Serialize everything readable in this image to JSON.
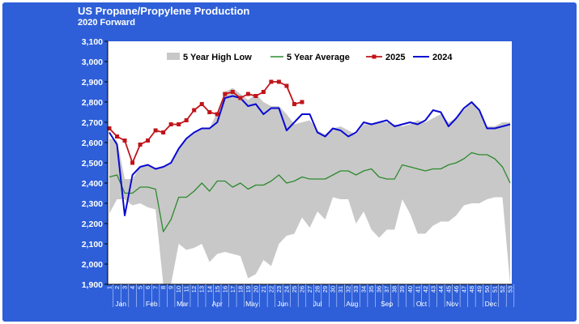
{
  "chart_data": {
    "type": "line",
    "title": "US Propane/Propylene Production",
    "subtitle": "2020 Forward",
    "ylim": [
      1900,
      3100
    ],
    "yticks": [
      "1,900",
      "2,000",
      "2,100",
      "2,200",
      "2,300",
      "2,400",
      "2,500",
      "2,600",
      "2,700",
      "2,800",
      "2,900",
      "3,000",
      "3,100"
    ],
    "xlim": [
      1,
      53
    ],
    "x_week_labels": [
      "1",
      "2",
      "3",
      "4",
      "5",
      "6",
      "7",
      "8",
      "9",
      "10",
      "11",
      "12",
      "13",
      "14",
      "15",
      "16",
      "17",
      "18",
      "19",
      "20",
      "21",
      "22",
      "23",
      "24",
      "25",
      "26",
      "27",
      "28",
      "29",
      "30",
      "31",
      "32",
      "33",
      "34",
      "35",
      "36",
      "37",
      "38",
      "39",
      "40",
      "41",
      "42",
      "43",
      "44",
      "45",
      "46",
      "47",
      "48",
      "49",
      "50",
      "51",
      "52",
      "53"
    ],
    "months": [
      {
        "label": "Jan",
        "week": 2.5
      },
      {
        "label": "Feb",
        "week": 6.5
      },
      {
        "label": "Mar",
        "week": 10.5
      },
      {
        "label": "Apr",
        "week": 15
      },
      {
        "label": "May",
        "week": 19.5
      },
      {
        "label": "Jun",
        "week": 23.5
      },
      {
        "label": "Jul",
        "week": 28
      },
      {
        "label": "Aug",
        "week": 32.5
      },
      {
        "label": "Sep",
        "week": 37
      },
      {
        "label": "Oct",
        "week": 41.5
      },
      {
        "label": "Nov",
        "week": 45.5
      },
      {
        "label": "Dec",
        "week": 50.5
      }
    ],
    "legend_position": "top",
    "grid": false,
    "colors": {
      "background": "#2e5fd8",
      "plot": "#ffffff",
      "band": "#c8c8c8",
      "avg": "#2d8a2d",
      "y2025": "#c0141a",
      "y2024": "#0a0ad2",
      "text": "#ffffff"
    },
    "series": [
      {
        "name": "5 Year High Low",
        "kind": "band",
        "x": [
          1,
          2,
          3,
          4,
          5,
          6,
          7,
          8,
          9,
          10,
          11,
          12,
          13,
          14,
          15,
          16,
          17,
          18,
          19,
          20,
          21,
          22,
          23,
          24,
          25,
          26,
          27,
          28,
          29,
          30,
          31,
          32,
          33,
          34,
          35,
          36,
          37,
          38,
          39,
          40,
          41,
          42,
          43,
          44,
          45,
          46,
          47,
          48,
          49,
          50,
          51,
          52,
          53
        ],
        "high": [
          2620,
          2610,
          2420,
          2420,
          2480,
          2490,
          2470,
          2480,
          2500,
          2570,
          2620,
          2650,
          2670,
          2670,
          2750,
          2850,
          2870,
          2840,
          2810,
          2840,
          2800,
          2780,
          2780,
          2740,
          2690,
          2700,
          2710,
          2660,
          2640,
          2670,
          2680,
          2660,
          2640,
          2690,
          2690,
          2700,
          2700,
          2690,
          2680,
          2690,
          2710,
          2700,
          2720,
          2740,
          2700,
          2720,
          2760,
          2800,
          2750,
          2680,
          2680,
          2700,
          2700
        ],
        "low": [
          2250,
          2320,
          2320,
          2290,
          2300,
          2280,
          2270,
          1900,
          1900,
          2100,
          2070,
          2080,
          2100,
          2010,
          2050,
          2060,
          2050,
          2040,
          1930,
          1950,
          2020,
          1990,
          2100,
          2140,
          2150,
          2230,
          2180,
          2260,
          2220,
          2330,
          2320,
          2320,
          2200,
          2260,
          2170,
          2130,
          2170,
          2170,
          2320,
          2250,
          2150,
          2150,
          2190,
          2210,
          2210,
          2240,
          2290,
          2300,
          2300,
          2320,
          2330,
          2330,
          1900
        ]
      },
      {
        "name": "5 Year Average",
        "kind": "line",
        "x": [
          1,
          2,
          3,
          4,
          5,
          6,
          7,
          8,
          9,
          10,
          11,
          12,
          13,
          14,
          15,
          16,
          17,
          18,
          19,
          20,
          21,
          22,
          23,
          24,
          25,
          26,
          27,
          28,
          29,
          30,
          31,
          32,
          33,
          34,
          35,
          36,
          37,
          38,
          39,
          40,
          41,
          42,
          43,
          44,
          45,
          46,
          47,
          48,
          49,
          50,
          51,
          52,
          53
        ],
        "y": [
          2430,
          2440,
          2350,
          2350,
          2380,
          2380,
          2370,
          2160,
          2220,
          2330,
          2330,
          2360,
          2400,
          2360,
          2410,
          2410,
          2380,
          2400,
          2370,
          2390,
          2390,
          2410,
          2440,
          2400,
          2410,
          2430,
          2420,
          2420,
          2420,
          2440,
          2460,
          2460,
          2440,
          2460,
          2470,
          2430,
          2420,
          2420,
          2490,
          2480,
          2470,
          2460,
          2470,
          2470,
          2490,
          2500,
          2520,
          2550,
          2540,
          2540,
          2520,
          2480,
          2400
        ]
      },
      {
        "name": "2025",
        "kind": "line-markers",
        "x": [
          1,
          2,
          3,
          4,
          5,
          6,
          7,
          8,
          9,
          10,
          11,
          12,
          13,
          14,
          15,
          16,
          17,
          18,
          19,
          20,
          21,
          22,
          23,
          24,
          25,
          26
        ],
        "y": [
          2670,
          2630,
          2610,
          2500,
          2590,
          2610,
          2660,
          2650,
          2690,
          2690,
          2710,
          2760,
          2790,
          2750,
          2740,
          2840,
          2850,
          2820,
          2840,
          2830,
          2850,
          2900,
          2900,
          2880,
          2790,
          2800
        ]
      },
      {
        "name": "2024",
        "kind": "line",
        "x": [
          1,
          2,
          3,
          4,
          5,
          6,
          7,
          8,
          9,
          10,
          11,
          12,
          13,
          14,
          15,
          16,
          17,
          18,
          19,
          20,
          21,
          22,
          23,
          24,
          25,
          26,
          27,
          28,
          29,
          30,
          31,
          32,
          33,
          34,
          35,
          36,
          37,
          38,
          39,
          40,
          41,
          42,
          43,
          44,
          45,
          46,
          47,
          48,
          49,
          50,
          51,
          52,
          53
        ],
        "y": [
          2650,
          2590,
          2240,
          2440,
          2480,
          2490,
          2470,
          2480,
          2500,
          2570,
          2620,
          2650,
          2670,
          2670,
          2700,
          2820,
          2830,
          2820,
          2780,
          2790,
          2740,
          2770,
          2770,
          2660,
          2700,
          2740,
          2740,
          2650,
          2630,
          2670,
          2660,
          2630,
          2650,
          2700,
          2690,
          2700,
          2710,
          2680,
          2690,
          2700,
          2690,
          2710,
          2760,
          2750,
          2680,
          2720,
          2770,
          2800,
          2760,
          2670,
          2670,
          2680,
          2690
        ]
      }
    ]
  }
}
